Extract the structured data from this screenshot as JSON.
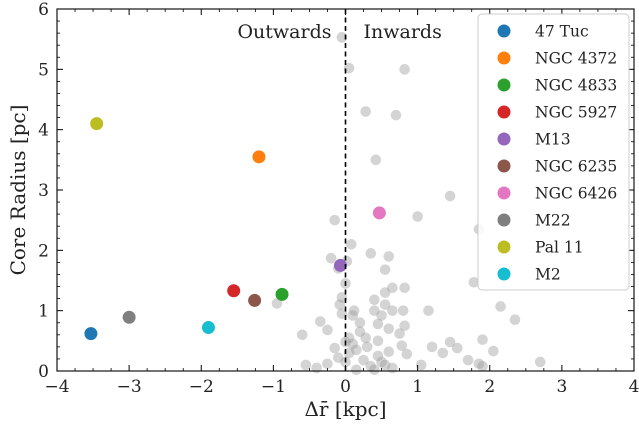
{
  "chart_data": {
    "type": "scatter",
    "xlabel": "Δr̄ [kpc]",
    "ylabel": "Core Radius [pc]",
    "xlim": [
      -4,
      4
    ],
    "ylim": [
      0,
      6
    ],
    "xticks": [
      "−4",
      "−3",
      "−2",
      "−1",
      "0",
      "1",
      "2",
      "3",
      "4"
    ],
    "yticks": [
      "0",
      "1",
      "2",
      "3",
      "4",
      "5",
      "6"
    ],
    "annotations": [
      "Outwards",
      "Inwards"
    ],
    "vline_x": 0,
    "legend_position": "top-right",
    "grid": false,
    "series": [
      {
        "name": "47 Tuc",
        "color": "#1f77b4",
        "x": -3.53,
        "y": 0.62
      },
      {
        "name": "NGC 4372",
        "color": "#ff7f0e",
        "x": -1.2,
        "y": 3.55
      },
      {
        "name": "NGC 4833",
        "color": "#2ca02c",
        "x": -0.88,
        "y": 1.27
      },
      {
        "name": "NGC 5927",
        "color": "#d62728",
        "x": -1.55,
        "y": 1.33
      },
      {
        "name": "M13",
        "color": "#9467bd",
        "x": -0.07,
        "y": 1.75
      },
      {
        "name": "NGC 6235",
        "color": "#8c564b",
        "x": -1.26,
        "y": 1.17
      },
      {
        "name": "NGC 6426",
        "color": "#e377c2",
        "x": 0.47,
        "y": 2.62
      },
      {
        "name": "M22",
        "color": "#7f7f7f",
        "x": -3.0,
        "y": 0.89
      },
      {
        "name": "Pal 11",
        "color": "#bcbd22",
        "x": -3.45,
        "y": 4.1
      },
      {
        "name": "M2",
        "color": "#17becf",
        "x": -1.9,
        "y": 0.72
      }
    ],
    "background_points": {
      "color": "#999999",
      "points": [
        [
          -0.05,
          5.53
        ],
        [
          0.05,
          5.02
        ],
        [
          0.82,
          5.0
        ],
        [
          0.28,
          4.3
        ],
        [
          0.7,
          4.24
        ],
        [
          0.42,
          3.5
        ],
        [
          1.45,
          2.9
        ],
        [
          1.0,
          2.56
        ],
        [
          -0.15,
          2.5
        ],
        [
          1.85,
          2.35
        ],
        [
          0.08,
          2.1
        ],
        [
          0.35,
          1.95
        ],
        [
          -0.2,
          1.87
        ],
        [
          0.6,
          1.9
        ],
        [
          0.02,
          1.82
        ],
        [
          0.55,
          1.68
        ],
        [
          -0.1,
          1.7
        ],
        [
          1.78,
          1.47
        ],
        [
          0.0,
          1.45
        ],
        [
          0.65,
          1.38
        ],
        [
          0.82,
          1.38
        ],
        [
          0.55,
          1.3
        ],
        [
          -0.05,
          1.22
        ],
        [
          0.4,
          1.18
        ],
        [
          2.15,
          1.07
        ],
        [
          -0.08,
          1.1
        ],
        [
          0.55,
          1.1
        ],
        [
          0.12,
          1.0
        ],
        [
          0.65,
          1.0
        ],
        [
          1.15,
          1.0
        ],
        [
          -0.95,
          1.12
        ],
        [
          0.4,
          1.0
        ],
        [
          0.8,
          1.0
        ],
        [
          0.1,
          0.92
        ],
        [
          0.5,
          0.92
        ],
        [
          0.2,
          0.8
        ],
        [
          2.35,
          0.85
        ],
        [
          -0.35,
          0.82
        ],
        [
          0.45,
          0.78
        ],
        [
          0.82,
          0.75
        ],
        [
          0.6,
          0.7
        ],
        [
          -0.6,
          0.6
        ],
        [
          0.2,
          0.65
        ],
        [
          -0.25,
          0.68
        ],
        [
          0.75,
          0.62
        ],
        [
          0.05,
          0.55
        ],
        [
          0.45,
          0.5
        ],
        [
          1.45,
          0.48
        ],
        [
          1.9,
          0.52
        ],
        [
          0.0,
          0.48
        ],
        [
          0.3,
          0.4
        ],
        [
          0.78,
          0.42
        ],
        [
          1.2,
          0.4
        ],
        [
          1.55,
          0.38
        ],
        [
          0.15,
          0.35
        ],
        [
          0.6,
          0.32
        ],
        [
          -0.15,
          0.38
        ],
        [
          1.35,
          0.3
        ],
        [
          2.05,
          0.33
        ],
        [
          0.05,
          0.3
        ],
        [
          0.45,
          0.25
        ],
        [
          -0.1,
          0.22
        ],
        [
          0.85,
          0.28
        ],
        [
          0.25,
          0.18
        ],
        [
          0.5,
          0.15
        ],
        [
          1.7,
          0.18
        ],
        [
          -0.25,
          0.12
        ],
        [
          0.0,
          0.15
        ],
        [
          0.35,
          0.08
        ],
        [
          0.65,
          0.05
        ],
        [
          1.05,
          0.1
        ],
        [
          1.85,
          0.12
        ],
        [
          2.7,
          0.15
        ],
        [
          -0.4,
          0.05
        ],
        [
          0.15,
          0.02
        ],
        [
          0.4,
          0.02
        ],
        [
          -0.55,
          0.1
        ],
        [
          0.1,
          0.45
        ],
        [
          0.55,
          0.1
        ],
        [
          0.28,
          0.55
        ],
        [
          -0.05,
          0.95
        ],
        [
          1.9,
          0.08
        ]
      ]
    }
  }
}
